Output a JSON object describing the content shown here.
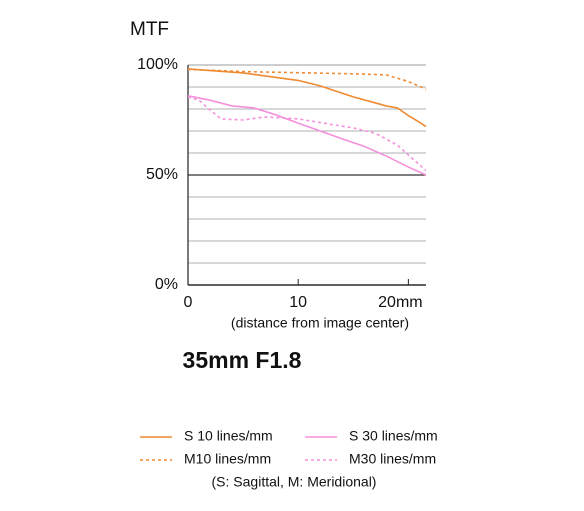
{
  "chart_data": {
    "type": "line",
    "title": "MTF",
    "subtitle": "35mm F1.8",
    "x_label": "(distance from image center)",
    "note": "(S: Sagittal, M: Meridional)",
    "xlim": [
      0,
      21.6
    ],
    "ylim": [
      0,
      100
    ],
    "xticks": [
      0,
      10,
      {
        "value": 20,
        "label": "20mm"
      }
    ],
    "yticks": [
      {
        "value": 0,
        "label": "0%"
      },
      {
        "value": 50,
        "label": "50%"
      },
      {
        "value": 100,
        "label": "100%"
      }
    ],
    "minor_yticks": [
      10,
      20,
      30,
      40,
      60,
      70,
      80,
      90
    ],
    "grid": true,
    "series": [
      {
        "name": "S 10 lines/mm",
        "color": "#f08a30",
        "style": "solid",
        "x": [
          0,
          5,
          10,
          12,
          15,
          18,
          19,
          20,
          21,
          21.6
        ],
        "values": [
          98.2,
          96.4,
          93,
          90.5,
          85.5,
          81.4,
          80.5,
          77,
          74,
          72
        ]
      },
      {
        "name": "M10 lines/mm",
        "color": "#f08a30",
        "style": "dashed",
        "x": [
          0,
          5,
          10,
          15,
          18,
          20,
          21.6
        ],
        "values": [
          98,
          97,
          96.5,
          96,
          95.5,
          92.5,
          89
        ]
      },
      {
        "name": "S 30 lines/mm",
        "color": "#f590dc",
        "style": "solid",
        "x": [
          0,
          2,
          4,
          6,
          8,
          10,
          12,
          14,
          16,
          18,
          20,
          21.6
        ],
        "values": [
          86,
          84,
          81.4,
          80.5,
          77.3,
          73.6,
          70,
          66.4,
          63,
          58.6,
          53.6,
          50
        ]
      },
      {
        "name": "M30 lines/mm",
        "color": "#f590dc",
        "style": "dashed",
        "x": [
          0,
          1,
          2,
          3,
          5,
          7,
          10,
          13,
          15,
          17,
          19,
          21.6
        ],
        "values": [
          85.5,
          84,
          79.5,
          75.5,
          75,
          76.4,
          75.5,
          73,
          71.4,
          69,
          63.6,
          52
        ]
      }
    ]
  }
}
